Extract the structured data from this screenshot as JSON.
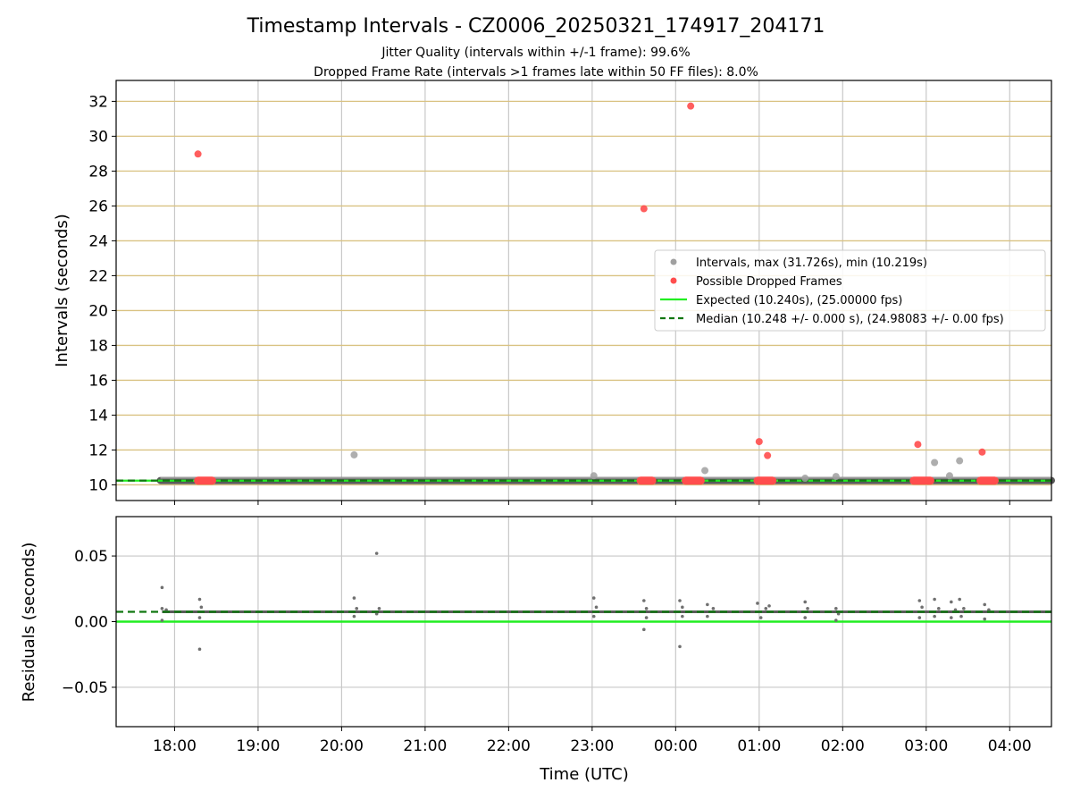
{
  "figure": {
    "title": "Timestamp Intervals - CZ0006_20250321_174917_204171",
    "subtitle_1": "Jitter Quality (intervals within +/-1 frame): 99.6%",
    "subtitle_2": "Dropped Frame Rate (intervals >1 frames late within 50 FF files): 8.0%",
    "xlabel": "Time (UTC)"
  },
  "chart_data": [
    {
      "type": "scatter",
      "ylabel": "Intervals (seconds)",
      "xlabel": "",
      "x_unit": "hours since 00:00 UTC of start date (21 March 2025)",
      "xlim": [
        17.3,
        28.5
      ],
      "ylim": [
        9.1,
        33.2
      ],
      "yticks": [
        10,
        12,
        14,
        16,
        18,
        20,
        22,
        24,
        26,
        28,
        30,
        32
      ],
      "xticks": [
        18,
        19,
        20,
        21,
        22,
        23,
        24,
        25,
        26,
        27,
        28
      ],
      "xtick_labels": [
        "18:00",
        "19:00",
        "20:00",
        "21:00",
        "22:00",
        "23:00",
        "00:00",
        "01:00",
        "02:00",
        "03:00",
        "04:00"
      ],
      "grid": true,
      "horizontal_bands_color": "#d9c282",
      "legend_position": "center-right",
      "legend": [
        {
          "label": "Intervals, max (31.726s), min (10.219s)",
          "kind": "marker",
          "color": "#a0a0a0"
        },
        {
          "label": "Possible Dropped Frames",
          "kind": "marker",
          "color": "#ff4d4d"
        },
        {
          "label": "Expected (10.240s), (25.00000 fps)",
          "kind": "solid-line",
          "color": "#22ee22"
        },
        {
          "label": "Median (10.248 +/- 0.000 s), (24.98083 +/- 0.00 fps)",
          "kind": "dashed-line",
          "color": "#117711"
        }
      ],
      "expected": 10.24,
      "median": 10.248,
      "baseline_band": {
        "x_start": 17.83,
        "x_end": 28.5,
        "y": 10.25
      },
      "series": [
        {
          "name": "Intervals, max (31.726s), min (10.219s)",
          "color": "#a0a0a0",
          "points": [
            [
              20.15,
              11.72
            ],
            [
              23.02,
              10.52
            ],
            [
              24.35,
              10.82
            ],
            [
              25.55,
              10.38
            ],
            [
              25.92,
              10.48
            ],
            [
              27.1,
              11.28
            ],
            [
              27.28,
              10.52
            ],
            [
              27.4,
              11.38
            ]
          ]
        },
        {
          "name": "Possible Dropped Frames",
          "color": "#ff4d4d",
          "points": [
            [
              18.28,
              28.98
            ],
            [
              24.18,
              31.73
            ],
            [
              23.62,
              25.84
            ],
            [
              25.0,
              12.48
            ],
            [
              25.1,
              11.68
            ],
            [
              26.9,
              12.32
            ],
            [
              27.67,
              11.88
            ]
          ],
          "clusters": [
            [
              18.28,
              18.45
            ],
            [
              23.58,
              23.72
            ],
            [
              24.12,
              24.3
            ],
            [
              24.98,
              25.16
            ],
            [
              26.85,
              27.05
            ],
            [
              27.65,
              27.82
            ]
          ],
          "cluster_y": 10.24
        }
      ]
    },
    {
      "type": "scatter",
      "ylabel": "Residuals (seconds)",
      "xlim": [
        17.3,
        28.5
      ],
      "ylim": [
        -0.08,
        0.08
      ],
      "yticks": [
        0.05,
        0.0,
        -0.05
      ],
      "ytick_labels": [
        "0.05",
        "0.00",
        "−0.05"
      ],
      "grid": true,
      "expected_residual": 0.0,
      "median_residual": 0.0075,
      "series": [
        {
          "name": "Residuals",
          "color": "#707070",
          "points": [
            [
              17.85,
              0.026
            ],
            [
              17.85,
              0.001
            ],
            [
              17.85,
              0.01
            ],
            [
              17.9,
              0.009
            ],
            [
              18.3,
              0.017
            ],
            [
              18.3,
              -0.021
            ],
            [
              18.3,
              0.003
            ],
            [
              18.32,
              0.011
            ],
            [
              20.15,
              0.018
            ],
            [
              20.15,
              0.004
            ],
            [
              20.18,
              0.01
            ],
            [
              20.42,
              0.052
            ],
            [
              20.42,
              0.006
            ],
            [
              20.45,
              0.01
            ],
            [
              23.02,
              0.018
            ],
            [
              23.02,
              0.004
            ],
            [
              23.05,
              0.011
            ],
            [
              23.62,
              0.016
            ],
            [
              23.62,
              -0.006
            ],
            [
              23.65,
              0.003
            ],
            [
              23.65,
              0.01
            ],
            [
              24.05,
              0.016
            ],
            [
              24.05,
              -0.019
            ],
            [
              24.08,
              0.004
            ],
            [
              24.08,
              0.011
            ],
            [
              24.38,
              0.013
            ],
            [
              24.38,
              0.004
            ],
            [
              24.45,
              0.01
            ],
            [
              24.98,
              0.014
            ],
            [
              25.02,
              0.003
            ],
            [
              25.08,
              0.01
            ],
            [
              25.12,
              0.012
            ],
            [
              25.55,
              0.015
            ],
            [
              25.55,
              0.003
            ],
            [
              25.58,
              0.01
            ],
            [
              25.92,
              0.01
            ],
            [
              25.92,
              0.001
            ],
            [
              25.95,
              0.006
            ],
            [
              26.92,
              0.016
            ],
            [
              26.92,
              0.003
            ],
            [
              26.95,
              0.011
            ],
            [
              27.1,
              0.017
            ],
            [
              27.1,
              0.004
            ],
            [
              27.15,
              0.01
            ],
            [
              27.3,
              0.015
            ],
            [
              27.3,
              0.003
            ],
            [
              27.35,
              0.009
            ],
            [
              27.4,
              0.017
            ],
            [
              27.42,
              0.004
            ],
            [
              27.45,
              0.01
            ],
            [
              27.7,
              0.013
            ],
            [
              27.7,
              0.002
            ],
            [
              27.75,
              0.009
            ]
          ]
        }
      ]
    }
  ]
}
